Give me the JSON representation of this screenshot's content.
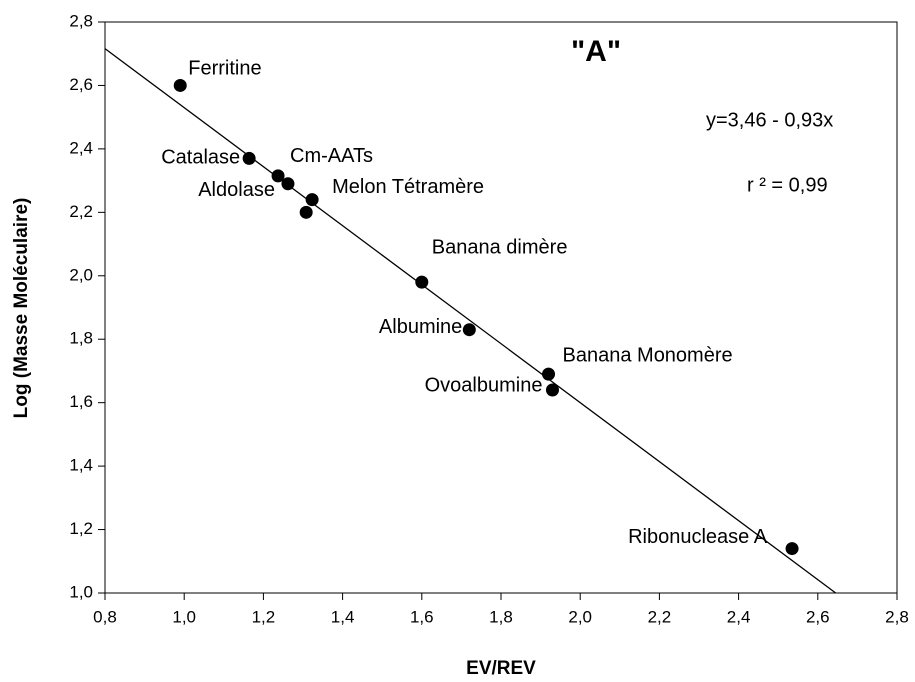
{
  "chart_data": {
    "type": "scatter",
    "x_label": "EV/REV",
    "y_label": "Log (Masse Moléculaire)",
    "annotations": [
      "\"A\"",
      "y=3,46 - 0,93x",
      "r ² = 0,99"
    ],
    "x": [
      0.99,
      1.164,
      1.237,
      1.262,
      1.323,
      1.308,
      1.6,
      1.72,
      1.92,
      1.93,
      2.535
    ],
    "values": [
      2.6,
      2.37,
      2.315,
      2.29,
      2.24,
      2.2,
      1.98,
      1.83,
      1.69,
      1.64,
      1.14
    ],
    "labels": [
      "Ferritine",
      "Catalase",
      "Cm-AATs",
      "Aldolase",
      "Melon Tétramère",
      null,
      "Banana dimère",
      "Albumine",
      "Banana Monomère",
      "Ovoalbumine",
      "Ribonuclease A"
    ],
    "color": "#000000",
    "fit": {
      "intercept": 3.46,
      "slope": -0.93
    },
    "xlim": [
      0.8,
      2.8
    ],
    "ylim": [
      1.0,
      2.8
    ],
    "xticks": [
      {
        "value": 0.8,
        "label": "0,8"
      },
      {
        "value": 1.0,
        "label": "1,0"
      },
      {
        "value": 1.2,
        "label": "1,2"
      },
      {
        "value": 1.4,
        "label": "1,4"
      },
      {
        "value": 1.6,
        "label": "1,6"
      },
      {
        "value": 1.8,
        "label": "1,8"
      },
      {
        "value": 2.0,
        "label": "2,0"
      },
      {
        "value": 2.2,
        "label": "2,2"
      },
      {
        "value": 2.4,
        "label": "2,4"
      },
      {
        "value": 2.6,
        "label": "2,6"
      },
      {
        "value": 2.8,
        "label": "2,8"
      }
    ],
    "yticks": [
      {
        "value": 1.0,
        "label": "1,0"
      },
      {
        "value": 1.2,
        "label": "1,2"
      },
      {
        "value": 1.4,
        "label": "1,4"
      },
      {
        "value": 1.6,
        "label": "1,6"
      },
      {
        "value": 1.8,
        "label": "1,8"
      },
      {
        "value": 2.0,
        "label": "2,0"
      },
      {
        "value": 2.2,
        "label": "2,2"
      },
      {
        "value": 2.4,
        "label": "2,4"
      },
      {
        "value": 2.6,
        "label": "2,6"
      },
      {
        "value": 2.8,
        "label": "2,8"
      }
    ],
    "grid": false
  }
}
